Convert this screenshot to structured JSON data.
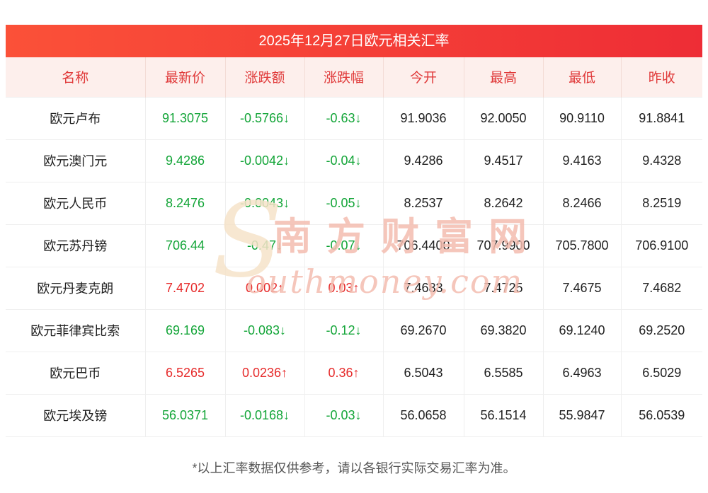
{
  "page_title": "2025年12月27日欧元相关汇率",
  "chart_data": {
    "type": "table",
    "title": "2025年12月27日欧元相关汇率",
    "columns": [
      "名称",
      "最新价",
      "涨跌额",
      "涨跌幅",
      "今开",
      "最高",
      "最低",
      "昨收"
    ],
    "rows": [
      {
        "name": "欧元卢布",
        "latest": "91.3075",
        "change": "-0.5766↓",
        "change_pct": "-0.63↓",
        "open": "91.9036",
        "high": "92.0050",
        "low": "90.9110",
        "prev_close": "91.8841",
        "trend": "down"
      },
      {
        "name": "欧元澳门元",
        "latest": "9.4286",
        "change": "-0.0042↓",
        "change_pct": "-0.04↓",
        "open": "9.4286",
        "high": "9.4517",
        "low": "9.4163",
        "prev_close": "9.4328",
        "trend": "down"
      },
      {
        "name": "欧元人民币",
        "latest": "8.2476",
        "change": "-0.0043↓",
        "change_pct": "-0.05↓",
        "open": "8.2537",
        "high": "8.2642",
        "low": "8.2466",
        "prev_close": "8.2519",
        "trend": "down"
      },
      {
        "name": "欧元苏丹镑",
        "latest": "706.44",
        "change": "-0.47↓",
        "change_pct": "-0.07↓",
        "open": "706.4400",
        "high": "707.9900",
        "low": "705.7800",
        "prev_close": "706.9100",
        "trend": "down"
      },
      {
        "name": "欧元丹麦克朗",
        "latest": "7.4702",
        "change": "0.002↑",
        "change_pct": "0.03↑",
        "open": "7.4683",
        "high": "7.4725",
        "low": "7.4675",
        "prev_close": "7.4682",
        "trend": "up"
      },
      {
        "name": "欧元菲律宾比索",
        "latest": "69.169",
        "change": "-0.083↓",
        "change_pct": "-0.12↓",
        "open": "69.2670",
        "high": "69.3820",
        "low": "69.1240",
        "prev_close": "69.2520",
        "trend": "down"
      },
      {
        "name": "欧元巴币",
        "latest": "6.5265",
        "change": "0.0236↑",
        "change_pct": "0.36↑",
        "open": "6.5043",
        "high": "6.5585",
        "low": "6.4963",
        "prev_close": "6.5029",
        "trend": "up"
      },
      {
        "name": "欧元埃及镑",
        "latest": "56.0371",
        "change": "-0.0168↓",
        "change_pct": "-0.03↓",
        "open": "56.0658",
        "high": "56.1514",
        "low": "55.9847",
        "prev_close": "56.0539",
        "trend": "down"
      }
    ]
  },
  "watermark": {
    "en_initial": "S",
    "cn": "南方财富网",
    "en_rest": "outhmoney.com"
  },
  "footer_note": "*以上汇率数据仅供参考，请以各银行实际交易汇率为准。",
  "colors": {
    "up": "#e62b2b",
    "down": "#13a538",
    "header_text": "#e03a3a",
    "header_bg": "#fdefec",
    "title_bg_left": "#fb5138",
    "title_bg_right": "#ee2d36",
    "watermark_pink": "#f4bdb0",
    "watermark_cream": "#f6e3c9"
  }
}
